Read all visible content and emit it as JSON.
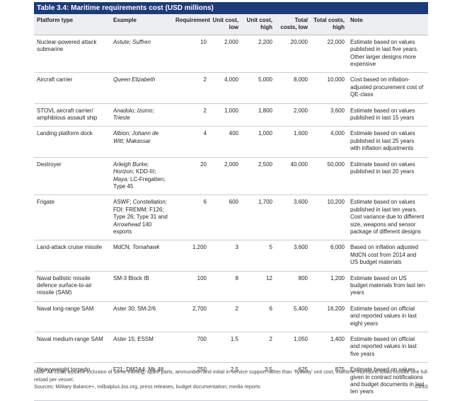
{
  "table": {
    "title": "Table 3.4: Maritime requirements cost (USD millions)",
    "columns": [
      "Platform type",
      "Example",
      "Requirement",
      "Unit cost, low",
      "Unit cost, high",
      "Total costs, low",
      "Total costs, high",
      "Note"
    ],
    "rows": [
      {
        "platform": "Nuclear-powered attack submarine",
        "example": [
          {
            "text": "Astute; Suffren",
            "italic": true
          }
        ],
        "requirement": "10",
        "unit_low": "2,000",
        "unit_high": "2,200",
        "total_low": "20,000",
        "total_high": "22,000",
        "note": "Estimate based on values published in last five years. Other larger designs more expensive"
      },
      {
        "platform": "Aircraft carrier",
        "example": [
          {
            "text": "Queen Elizabeth",
            "italic": true
          }
        ],
        "requirement": "2",
        "unit_low": "4,000",
        "unit_high": "5,000",
        "total_low": "8,000",
        "total_high": "10,000",
        "note": "Cost based on inflation-adjusted procurement cost of QE-class"
      },
      {
        "platform": "STOVL aircraft carrier/ amphibious assault ship",
        "example": [
          {
            "text": "Anadolu; Izumo; Trieste",
            "italic": true
          }
        ],
        "requirement": "2",
        "unit_low": "1,000",
        "unit_high": "1,800",
        "total_low": "2,000",
        "total_high": "3,600",
        "note": "Estimate based on values published in last 15 years"
      },
      {
        "platform": "Landing platform dock",
        "example": [
          {
            "text": "Albion; Johann de Witt; Makassar",
            "italic": true
          }
        ],
        "requirement": "4",
        "unit_low": "400",
        "unit_high": "1,000",
        "total_low": "1,600",
        "total_high": "4,000",
        "note": "Estimate based on values published in last 25 years with inflation adjustments"
      },
      {
        "platform": "Destroyer",
        "example": [
          {
            "text": "Arleigh Burke; Horizon;",
            "italic": true
          },
          {
            "text": " KDD-III; ",
            "italic": false
          },
          {
            "text": "Maya;",
            "italic": true
          },
          {
            "text": " LC-Fregatten; Type 45",
            "italic": false
          }
        ],
        "requirement": "20",
        "unit_low": "2,000",
        "unit_high": "2,500",
        "total_low": "40,000",
        "total_high": "50,000",
        "note": "Estimate based on values published in last 20 years"
      },
      {
        "platform": "Frigate",
        "example": [
          {
            "text": "ASWF; ",
            "italic": false
          },
          {
            "text": "Constellation;",
            "italic": true
          },
          {
            "text": " FDI; FREMM; F126; Type 26; Type 31 and ",
            "italic": false
          },
          {
            "text": "Arrowhead",
            "italic": true
          },
          {
            "text": " 140 exports",
            "italic": false
          }
        ],
        "requirement": "6",
        "unit_low": "600",
        "unit_high": "1,700",
        "total_low": "3,600",
        "total_high": "10,200",
        "note": "Estimate based on values published in last ten years. Cost variance due to different size, weapons and sensor package of different designs"
      },
      {
        "platform": "Land-attack cruise missile",
        "example": [
          {
            "text": "MdCN; ",
            "italic": false
          },
          {
            "text": "Tomahawk",
            "italic": true
          }
        ],
        "requirement": "1,200",
        "unit_low": "3",
        "unit_high": "5",
        "total_low": "3,600",
        "total_high": "6,000",
        "note": "Based on inflation adjusted MdCN cost from 2014 and US budget materials"
      },
      {
        "platform": "Naval ballistic missile defence surface-to-air missile (SAM)",
        "example": [
          {
            "text": "SM-3 Block IB",
            "italic": false
          }
        ],
        "requirement": "100",
        "unit_low": "8",
        "unit_high": "12",
        "total_low": "800",
        "total_high": "1,200",
        "note": "Estimate based on US budget materials from last ten years"
      },
      {
        "platform": "Naval long-range SAM",
        "example": [
          {
            "text": "Aster",
            "italic": true
          },
          {
            "text": " 30; SM-2/6",
            "italic": false
          }
        ],
        "requirement": "2,700",
        "unit_low": "2",
        "unit_high": "6",
        "total_low": "5,400",
        "total_high": "16,200",
        "note": "Estimate based on official and reported values in last eight years"
      },
      {
        "platform": "Naval medium-range SAM",
        "example": [
          {
            "text": "Aster",
            "italic": true
          },
          {
            "text": " 15; ESSM",
            "italic": false
          }
        ],
        "requirement": "700",
        "unit_low": "1.5",
        "unit_high": "2",
        "total_low": "1,050",
        "total_high": "1,400",
        "note": "Estimate based on official and reported values in last five years"
      },
      {
        "platform": "Heavyweight torpedo",
        "example": [
          {
            "text": "F21; DM2A4; Mk 48",
            "italic": false
          }
        ],
        "requirement": "250",
        "unit_low": "2.5",
        "unit_high": "3.5",
        "total_low": "625",
        "total_high": "875",
        "note": "Estimate based on values given in contract notifications and budget documents in last ten years"
      }
    ],
    "footnote": "Note: All costs assume inclusion of some training, spare parts, ammunition and initial in-service support rather than ‘flyaway’ unit cost; maritime munitions totals include one full reload per vessel.",
    "sources": "Sources: Military Balance+, milbalplus.iiss.org, press releases, budget documentation; media reports",
    "copyright": "©IISS"
  }
}
